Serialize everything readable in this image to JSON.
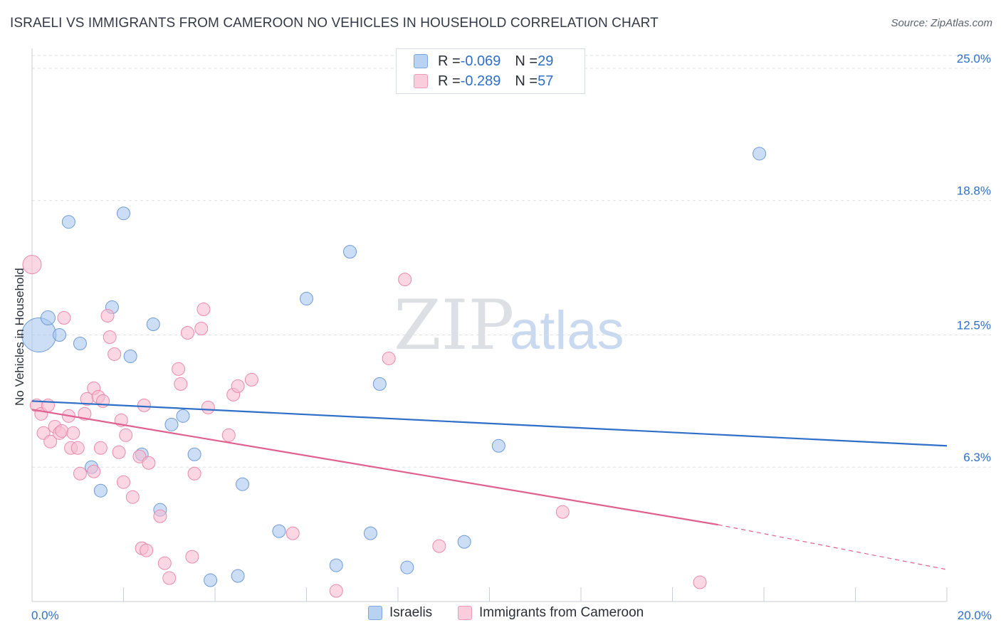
{
  "title": "ISRAELI VS IMMIGRANTS FROM CAMEROON NO VEHICLES IN HOUSEHOLD CORRELATION CHART",
  "source": "Source: ZipAtlas.com",
  "watermark": {
    "zip": "ZIP",
    "atlas": "atlas"
  },
  "legend_top": [
    {
      "r_label": "R = ",
      "r_value": "-0.069",
      "n_label": "N = ",
      "n_value": "29"
    },
    {
      "r_label": "R = ",
      "r_value": "-0.289",
      "n_label": "N = ",
      "n_value": "57"
    }
  ],
  "colors": {
    "israelis_fill": "#a9c8ef",
    "israelis_stroke": "#6f9ad6",
    "israelis_line": "#2f6fc8",
    "cameroon_fill": "#f6bcd0",
    "cameroon_stroke": "#e98aaa",
    "cameroon_line": "#e0608f",
    "axis_label": "#2f6fc8",
    "grid": "#dde1e6"
  },
  "chart_data": {
    "type": "scatter",
    "title": "ISRAELI VS IMMIGRANTS FROM CAMEROON NO VEHICLES IN HOUSEHOLD CORRELATION CHART",
    "xlabel": "",
    "ylabel": "No Vehicles in Household",
    "xlim": [
      0,
      20
    ],
    "ylim": [
      0,
      25.6
    ],
    "x_tick_labels": [
      "0.0%",
      "20.0%"
    ],
    "y_tick_labels": [
      "25.0%",
      "18.8%",
      "12.5%",
      "6.3%"
    ],
    "y_tick_values": [
      25.0,
      18.8,
      12.5,
      6.3
    ],
    "grid": true,
    "legend_position": "bottom",
    "series": [
      {
        "name": "Israelis",
        "r": -0.069,
        "n": 29,
        "trend": {
          "x0": 0,
          "y0": 9.4,
          "x1": 20,
          "y1": 7.3
        },
        "points": [
          [
            0.15,
            12.5,
            24
          ],
          [
            0.35,
            13.3,
            10
          ],
          [
            0.6,
            12.5,
            9
          ],
          [
            0.8,
            17.8,
            9
          ],
          [
            1.05,
            12.1,
            9
          ],
          [
            1.3,
            6.3,
            9
          ],
          [
            1.5,
            5.2,
            9
          ],
          [
            1.75,
            13.8,
            9
          ],
          [
            2.0,
            18.2,
            9
          ],
          [
            2.15,
            11.5,
            9
          ],
          [
            2.4,
            6.9,
            9
          ],
          [
            2.65,
            13.0,
            9
          ],
          [
            2.8,
            4.3,
            9
          ],
          [
            3.05,
            8.3,
            9
          ],
          [
            3.3,
            8.7,
            9
          ],
          [
            3.55,
            6.9,
            9
          ],
          [
            3.9,
            1.0,
            9
          ],
          [
            4.5,
            1.2,
            9
          ],
          [
            4.6,
            5.5,
            9
          ],
          [
            5.4,
            3.3,
            9
          ],
          [
            6.0,
            14.2,
            9
          ],
          [
            6.65,
            1.7,
            9
          ],
          [
            6.95,
            16.4,
            9
          ],
          [
            7.4,
            3.2,
            9
          ],
          [
            7.6,
            10.2,
            9
          ],
          [
            8.2,
            1.6,
            9
          ],
          [
            9.45,
            2.8,
            9
          ],
          [
            10.2,
            7.3,
            9
          ],
          [
            15.9,
            21.0,
            9
          ]
        ]
      },
      {
        "name": "Immigrants from Cameroon",
        "r": -0.289,
        "n": 57,
        "trend": {
          "x0": 0,
          "y0": 9.0,
          "x1": 15.0,
          "y1": 3.6
        },
        "trend_dashed": {
          "x0": 15.0,
          "y0": 3.6,
          "x1": 20,
          "y1": 1.5
        },
        "points": [
          [
            0.0,
            15.8,
            13
          ],
          [
            0.1,
            9.2,
            9
          ],
          [
            0.2,
            8.8,
            9
          ],
          [
            0.25,
            7.9,
            9
          ],
          [
            0.35,
            9.2,
            9
          ],
          [
            0.4,
            7.5,
            9
          ],
          [
            0.5,
            8.2,
            9
          ],
          [
            0.6,
            7.9,
            9
          ],
          [
            0.65,
            8.0,
            9
          ],
          [
            0.7,
            13.3,
            9
          ],
          [
            0.8,
            8.7,
            9
          ],
          [
            0.85,
            7.2,
            9
          ],
          [
            0.9,
            7.9,
            9
          ],
          [
            1.0,
            7.2,
            9
          ],
          [
            1.05,
            6.0,
            9
          ],
          [
            1.15,
            8.8,
            9
          ],
          [
            1.2,
            9.5,
            9
          ],
          [
            1.35,
            6.1,
            9
          ],
          [
            1.35,
            10.0,
            9
          ],
          [
            1.45,
            9.6,
            9
          ],
          [
            1.5,
            7.2,
            9
          ],
          [
            1.55,
            9.4,
            9
          ],
          [
            1.65,
            13.4,
            9
          ],
          [
            1.7,
            12.4,
            9
          ],
          [
            1.8,
            11.6,
            9
          ],
          [
            1.9,
            7.0,
            9
          ],
          [
            1.95,
            8.5,
            9
          ],
          [
            2.0,
            5.6,
            9
          ],
          [
            2.05,
            7.8,
            9
          ],
          [
            2.2,
            4.9,
            9
          ],
          [
            2.35,
            6.8,
            9
          ],
          [
            2.4,
            2.5,
            9
          ],
          [
            2.45,
            9.2,
            9
          ],
          [
            2.5,
            2.4,
            9
          ],
          [
            2.55,
            6.5,
            9
          ],
          [
            2.8,
            4.0,
            9
          ],
          [
            2.9,
            1.8,
            9
          ],
          [
            3.0,
            1.1,
            9
          ],
          [
            3.2,
            10.9,
            9
          ],
          [
            3.25,
            10.2,
            9
          ],
          [
            3.4,
            12.6,
            9
          ],
          [
            3.5,
            2.1,
            9
          ],
          [
            3.55,
            6.0,
            9
          ],
          [
            3.7,
            12.8,
            9
          ],
          [
            3.75,
            13.7,
            9
          ],
          [
            3.85,
            9.1,
            9
          ],
          [
            4.3,
            7.8,
            9
          ],
          [
            4.4,
            9.7,
            9
          ],
          [
            4.5,
            10.1,
            9
          ],
          [
            4.8,
            10.4,
            9
          ],
          [
            5.7,
            3.2,
            9
          ],
          [
            6.65,
            0.5,
            9
          ],
          [
            7.8,
            11.4,
            9
          ],
          [
            8.15,
            15.1,
            9
          ],
          [
            8.9,
            2.6,
            9
          ],
          [
            11.6,
            4.2,
            9
          ],
          [
            14.6,
            0.9,
            9
          ]
        ]
      }
    ]
  }
}
